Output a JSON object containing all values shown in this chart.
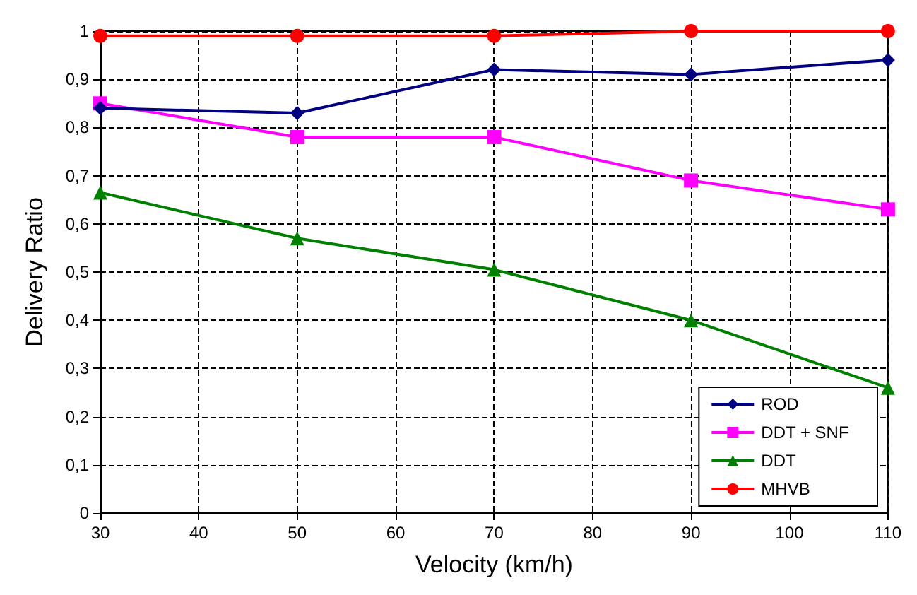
{
  "chart_data": {
    "type": "line",
    "xlabel": "Velocity (km/h)",
    "ylabel": "Delivery Ratio",
    "x": [
      30,
      50,
      70,
      90,
      110
    ],
    "series": [
      {
        "name": "ROD",
        "color": "#000080",
        "marker": "diamond",
        "values": [
          0.84,
          0.83,
          0.92,
          0.91,
          0.94
        ]
      },
      {
        "name": "DDT + SNF",
        "color": "#ff00ff",
        "marker": "square",
        "values": [
          0.85,
          0.78,
          0.78,
          0.69,
          0.63
        ]
      },
      {
        "name": "DDT",
        "color": "#008000",
        "marker": "triangle",
        "values": [
          0.665,
          0.57,
          0.505,
          0.4,
          0.26
        ]
      },
      {
        "name": "MHVB",
        "color": "#ff0000",
        "marker": "circle",
        "values": [
          0.99,
          0.99,
          0.99,
          1,
          1
        ]
      }
    ],
    "xlim": [
      30,
      110
    ],
    "xticks": [
      30,
      40,
      50,
      60,
      70,
      80,
      90,
      100,
      110
    ],
    "ylim": [
      0,
      1
    ],
    "yticks": [
      0,
      {
        "value": 0.1,
        "label": "0,1"
      },
      {
        "value": 0.2,
        "label": "0,2"
      },
      {
        "value": 0.3,
        "label": "0,3"
      },
      {
        "value": 0.4,
        "label": "0,4"
      },
      {
        "value": 0.5,
        "label": "0,5"
      },
      {
        "value": 0.6,
        "label": "0,6"
      },
      {
        "value": 0.7,
        "label": "0,7"
      },
      {
        "value": 0.8,
        "label": "0,8"
      },
      {
        "value": 0.9,
        "label": "0,9"
      },
      1
    ],
    "grid": true,
    "legend": "bottom right",
    "line_style": "solid"
  }
}
